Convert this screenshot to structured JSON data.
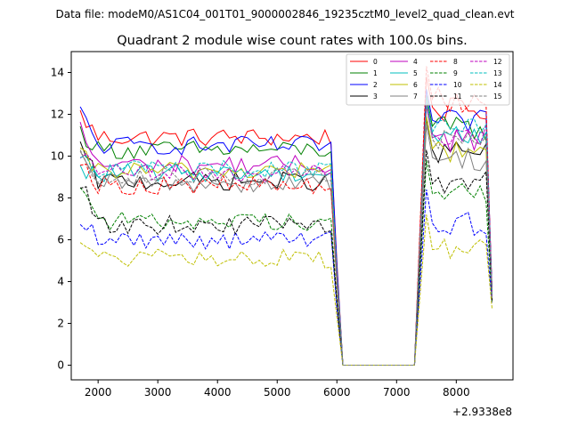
{
  "chart_data": {
    "type": "line",
    "suptitle": "Data file: modeM0/AS1C04_001T01_9000002846_19235cztM0_level2_quad_clean.evt",
    "title": "Quadrant 2 module wise count rates with 100.0s bins.",
    "xlabel": "",
    "ylabel": "",
    "x_offset_label": "+2.9338e8",
    "xlim": [
      1550,
      8950
    ],
    "ylim": [
      -0.7,
      15.0
    ],
    "xticks": [
      2000,
      3000,
      4000,
      5000,
      6000,
      7000,
      8000
    ],
    "yticks": [
      0,
      2,
      4,
      6,
      8,
      10,
      12,
      14
    ],
    "legend_position": "upper-right",
    "x": [
      1700,
      1800,
      1900,
      2000,
      2100,
      2200,
      2300,
      2400,
      2500,
      2600,
      2700,
      2800,
      2900,
      3000,
      3100,
      3200,
      3300,
      3400,
      3500,
      3600,
      3700,
      3800,
      3900,
      4000,
      4100,
      4200,
      4300,
      4400,
      4500,
      4600,
      4700,
      4800,
      4900,
      5000,
      5100,
      5200,
      5300,
      5400,
      5500,
      5600,
      5700,
      5800,
      5900,
      6000,
      6100,
      6200,
      6300,
      6400,
      6500,
      6600,
      6700,
      6800,
      6900,
      7000,
      7100,
      7200,
      7300,
      7400,
      7500,
      7600,
      7700,
      7800,
      7900,
      8000,
      8100,
      8200,
      8300,
      8400,
      8500,
      8600
    ],
    "series": [
      {
        "name": "0",
        "color": "#ff0000",
        "dash": "solid",
        "base": 10.9,
        "active_start": 12.0,
        "spike": 13.8,
        "end": 3.6
      },
      {
        "name": "1",
        "color": "#008000",
        "dash": "solid",
        "base": 10.3,
        "active_start": 11.2,
        "spike": 12.9,
        "end": 3.6
      },
      {
        "name": "2",
        "color": "#0000ff",
        "dash": "solid",
        "base": 10.5,
        "active_start": 12.1,
        "spike": 13.2,
        "end": 3.4
      },
      {
        "name": "3",
        "color": "#000000",
        "dash": "solid",
        "base": 8.8,
        "active_start": 10.4,
        "spike": 11.8,
        "end": 3.2
      },
      {
        "name": "4",
        "color": "#bf00bf",
        "dash": "solid",
        "base": 9.6,
        "active_start": 11.3,
        "spike": 12.4,
        "end": 3.5
      },
      {
        "name": "5",
        "color": "#00bfbf",
        "dash": "solid",
        "base": 9.2,
        "active_start": 9.2,
        "spike": 12.6,
        "end": 3.3
      },
      {
        "name": "6",
        "color": "#bfbf00",
        "dash": "solid",
        "base": 9.3,
        "active_start": 10.0,
        "spike": 11.9,
        "end": 3.4
      },
      {
        "name": "7",
        "color": "#808080",
        "dash": "solid",
        "base": 8.7,
        "active_start": 9.8,
        "spike": 11.5,
        "end": 3.3
      },
      {
        "name": "8",
        "color": "#ff0000",
        "dash": "dashed",
        "base": 8.6,
        "active_start": 10.0,
        "spike": 14.3,
        "end": 3.1
      },
      {
        "name": "9",
        "color": "#008000",
        "dash": "dashed",
        "base": 6.9,
        "active_start": 8.9,
        "spike": 9.8,
        "end": 3.0
      },
      {
        "name": "10",
        "color": "#0000ff",
        "dash": "dashed",
        "base": 6.0,
        "active_start": 7.1,
        "spike": 8.4,
        "end": 3.0
      },
      {
        "name": "11",
        "color": "#000000",
        "dash": "dashed",
        "base": 6.7,
        "active_start": 8.8,
        "spike": 10.3,
        "end": 3.1
      },
      {
        "name": "12",
        "color": "#bf00bf",
        "dash": "dashed",
        "base": 9.2,
        "active_start": 10.2,
        "spike": 12.7,
        "end": 3.2
      },
      {
        "name": "13",
        "color": "#00bfbf",
        "dash": "dashed",
        "base": 9.4,
        "active_start": 10.2,
        "spike": 12.8,
        "end": 3.3
      },
      {
        "name": "14",
        "color": "#bfbf00",
        "dash": "dashed",
        "base": 5.1,
        "active_start": 6.1,
        "spike": 7.2,
        "end": 2.7
      },
      {
        "name": "15",
        "color": "#808080",
        "dash": "dashed",
        "base": 9.0,
        "active_start": 10.5,
        "spike": 12.5,
        "end": 3.2
      }
    ]
  }
}
